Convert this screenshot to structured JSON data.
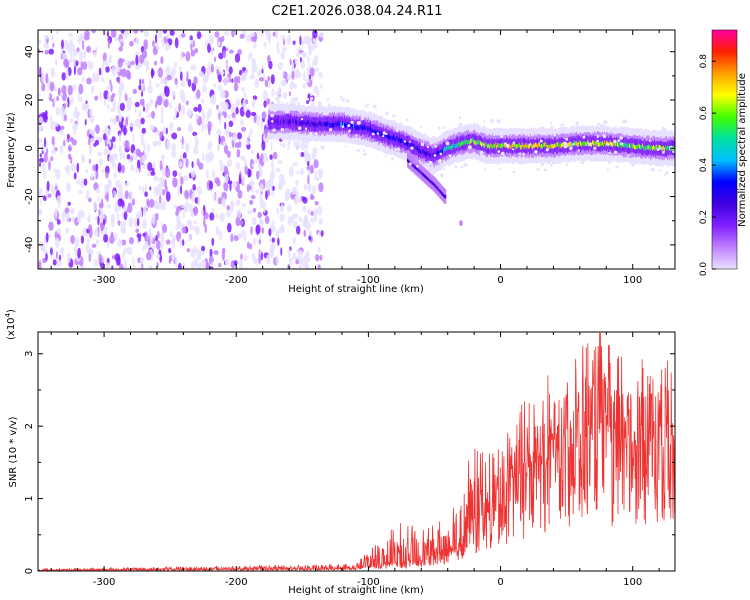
{
  "figure_title": "C2E1.2026.038.04.24.R11",
  "chart_data": [
    {
      "type": "heatmap",
      "xlabel": "Height of straight line (km)",
      "ylabel": "Frequency (Hz)",
      "xlim": [
        -350,
        132
      ],
      "ylim": [
        -50,
        49
      ],
      "xticks": [
        -300,
        -200,
        -100,
        0,
        100
      ],
      "xtick_labels": [
        "-300",
        "-200",
        "-100",
        "0",
        "100"
      ],
      "yticks": [
        -40,
        -20,
        0,
        20,
        40
      ],
      "ytick_labels": [
        "-40",
        "-20",
        "0",
        "20",
        "40"
      ],
      "colorbar": {
        "label": "Normalized spectral amplitude",
        "range": [
          0,
          0.92
        ],
        "ticks": [
          0.0,
          0.2,
          0.4,
          0.6,
          0.8
        ],
        "tick_labels": [
          "0.0",
          "0.2",
          "0.4",
          "0.6",
          "0.8"
        ],
        "colormap": [
          "#e8e0ff",
          "#c080ff",
          "#8020ff",
          "#4000e0",
          "#0000ff",
          "#00c0ff",
          "#00e0a0",
          "#40ff00",
          "#ffff00",
          "#ffa000",
          "#ff2000",
          "#ff00a0"
        ]
      },
      "noise_region_km": [
        -350,
        -135
      ],
      "signal_track": {
        "height_km": [
          -175,
          -160,
          -140,
          -120,
          -100,
          -85,
          -70,
          -60,
          -50,
          -40,
          -30,
          -20,
          -10,
          0,
          20,
          40,
          60,
          80,
          100,
          120,
          132
        ],
        "frequency_hz": [
          11,
          11,
          10,
          10,
          8,
          5,
          2,
          -1,
          -3,
          0,
          2,
          3,
          1,
          1,
          1,
          1,
          2,
          2,
          1,
          0,
          0
        ],
        "peak_amplitude": [
          0.25,
          0.3,
          0.3,
          0.45,
          0.4,
          0.4,
          0.35,
          0.35,
          0.3,
          0.6,
          0.7,
          0.75,
          0.8,
          0.8,
          0.85,
          0.85,
          0.75,
          0.8,
          0.7,
          0.75,
          0.7
        ]
      },
      "side_branch": {
        "height_km": [
          -70,
          -60,
          -50,
          -42
        ],
        "frequency_hz": [
          -5,
          -10,
          -15,
          -20
        ]
      }
    },
    {
      "type": "line",
      "xlabel": "Height of straight line (km)",
      "ylabel": "SNR (10 * v/v)",
      "y_multiplier_label": "(x10",
      "y_multiplier_exponent": "4",
      "xlim": [
        -350,
        132
      ],
      "ylim": [
        0,
        3.3
      ],
      "xticks": [
        -300,
        -200,
        -100,
        0,
        100
      ],
      "xtick_labels": [
        "-300",
        "-200",
        "-100",
        "0",
        "100"
      ],
      "yticks": [
        0,
        1,
        2,
        3
      ],
      "ytick_labels": [
        "0",
        "1",
        "2",
        "3"
      ],
      "series": [
        {
          "name": "SNR",
          "color": "#ee3333",
          "envelope_x_km": [
            -350,
            -110,
            -100,
            -80,
            -60,
            -40,
            -30,
            -20,
            -10,
            0,
            10,
            20,
            30,
            40,
            50,
            60,
            70,
            80,
            90,
            100,
            110,
            120,
            132
          ],
          "envelope_mean": [
            0.01,
            0.03,
            0.07,
            0.1,
            0.13,
            0.25,
            0.4,
            0.6,
            0.75,
            0.9,
            1.1,
            1.3,
            1.45,
            1.55,
            1.65,
            1.7,
            1.75,
            1.75,
            1.7,
            1.7,
            1.75,
            1.7,
            1.7
          ],
          "envelope_peak": [
            0.03,
            0.1,
            0.3,
            0.7,
            0.6,
            0.75,
            1.3,
            1.9,
            1.6,
            1.8,
            2.2,
            2.4,
            2.6,
            2.9,
            3.0,
            3.2,
            3.3,
            3.3,
            3.1,
            3.1,
            3.0,
            3.1,
            3.15
          ]
        }
      ]
    }
  ]
}
